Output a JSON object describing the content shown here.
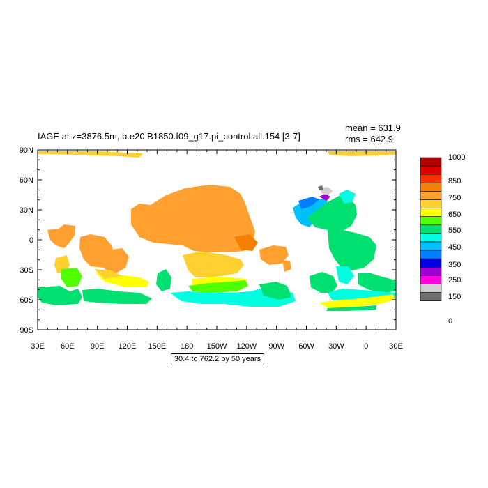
{
  "title": "IAGE at z=3876.5m, b.e20.B1850.f09_g17.pi_control.all.154 [3-7]",
  "stats": {
    "mean": "mean = 631.9",
    "rms": "rms = 642.9"
  },
  "info_box": "30.4 to 762.2 by 50 years",
  "x_ticks": [
    "30E",
    "60E",
    "90E",
    "120E",
    "150E",
    "180",
    "150W",
    "120W",
    "90W",
    "60W",
    "30W",
    "0",
    "30E"
  ],
  "y_ticks": [
    "90N",
    "60N",
    "30N",
    "0",
    "30S",
    "60S",
    "90S"
  ],
  "colorbar": {
    "labels": [
      "1000",
      "850",
      "750",
      "650",
      "550",
      "450",
      "350",
      "250",
      "150",
      "0"
    ],
    "colors": [
      "#b00000",
      "#e00000",
      "#ff3000",
      "#f58000",
      "#ffa030",
      "#ffd030",
      "#ffff00",
      "#50ff00",
      "#00e070",
      "#00ffe0",
      "#00c0ff",
      "#0080ff",
      "#0000e0",
      "#a000d0",
      "#ff00e0",
      "#d0d0d0",
      "#707070"
    ]
  }
}
